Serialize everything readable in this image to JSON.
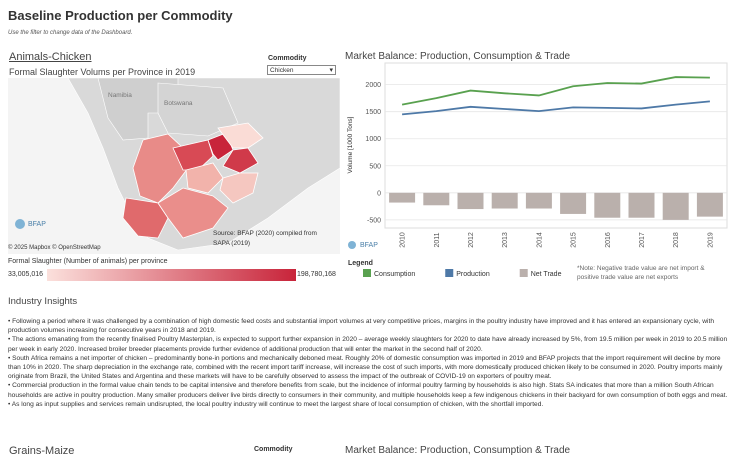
{
  "header": {
    "title": "Baseline Production per Commodity",
    "subtitle": "Use the filter to change data of the Dashboard."
  },
  "map_panel": {
    "section": "Animals-Chicken",
    "subtitle": "Formal Slaughter Volums per Province in 2019",
    "filter_label": "Commodity",
    "filter_value": "Chicken",
    "labels": [
      "Namibia",
      "Botswana"
    ],
    "logo": "BFAP",
    "attribution": "© 2025 Mapbox © OpenStreetMap",
    "source": [
      "Source: BFAP (2020) compiled from",
      "SAPA (2019)"
    ],
    "legend_title": "Formal Slaughter (Number of animals) per province",
    "legend_min": "33,005,016",
    "legend_max": "198,780,168"
  },
  "chart_data": {
    "type": "combo",
    "title": "Market Balance: Production, Consumption & Trade",
    "y_label": "Volume [1000 Tons]",
    "categories": [
      "2010",
      "2011",
      "2012",
      "2013",
      "2014",
      "2015",
      "2016",
      "2017",
      "2018",
      "2019"
    ],
    "series": [
      {
        "name": "Consumption",
        "type": "line",
        "color": "#59a14f",
        "values": [
          1630,
          1750,
          1890,
          1840,
          1800,
          1970,
          2030,
          2020,
          2140,
          2130
        ]
      },
      {
        "name": "Production",
        "type": "line",
        "color": "#4e79a7",
        "values": [
          1450,
          1510,
          1590,
          1550,
          1510,
          1580,
          1570,
          1560,
          1630,
          1690
        ]
      },
      {
        "name": "Net Trade",
        "type": "bar",
        "color": "#bab0ac",
        "values": [
          -180,
          -230,
          -300,
          -290,
          -290,
          -390,
          -460,
          -460,
          -500,
          -440
        ]
      }
    ],
    "ylim": [
      -650,
      2400
    ],
    "yticks": [
      -500,
      0,
      500,
      1000,
      1500,
      2000
    ],
    "grid": true,
    "legend_title": "Legend",
    "logo": "BFAP",
    "note": "*Note: Negative trade value are net import & positive trade value are net exports"
  },
  "insights": {
    "title": "Industry Insights",
    "bullets": [
      "• Following a period where it was challenged by a combination of high domestic feed costs and substantial import volumes at very competitive prices, margins in the poultry industry have improved and it has entered an expansionary cycle, with production volumes increasing for consecutive years in 2018 and 2019.",
      "• The actions emanating from the recently finalised Poultry Masterplan, is expected to support further expansion in 2020 – average weekly slaughters for 2020 to date have already increased by 5%, from 19.5 million per week in 2019 to 20.5 million per week in early 2020. Increased broiler breeder placements provide further evidence of additional production that will enter the market in the second half of 2020.",
      "• South Africa remains a net importer of chicken – predominantly bone-in portions and mechanically deboned meat. Roughly 20% of domestic consumption was imported in 2019 and BFAP projects that the import requirement will decline by more than 10% in 2020. The sharp depreciation in the exchange rate, combined with the recent import tariff increase, will increase the cost of such imports, with more domestically produced chicken likely to be consumed in 2020. Poultry imports mainly originate from Brazil, the United States and Argentina and these markets will have to be carefully observed to assess the impact of the outbreak of COVID-19 on exporters of poultry meat.",
      "• Commercial production in the formal value chain tends to be capital intensive and therefore benefits from scale, but the incidence of informal poultry farming by households is also high. Stats SA indicates that more than a million South African households are active in poultry production. Many smaller producers deliver live birds directly to consumers in their community, and multiple households keep a few indigenous chickens in their backyard for own consumption of both eggs and meat.",
      "• As long as input supplies and services remain undisrupted, the local poultry industry will continue to meet the largest share of local consumption of chicken, with the shortfall imported."
    ]
  },
  "next_panel": {
    "section": "Grains-Maize",
    "filter_label": "Commodity",
    "title": "Market Balance: Production, Consumption & Trade"
  }
}
